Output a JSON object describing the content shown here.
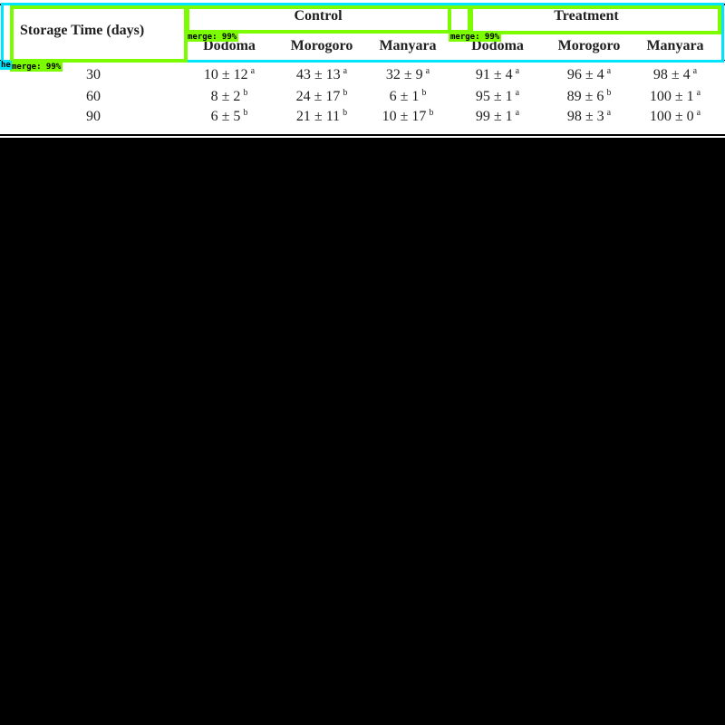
{
  "table": {
    "stub_header": "Storage Time (days)",
    "groups": [
      "Control",
      "Treatment"
    ],
    "columns": [
      "Dodoma",
      "Morogoro",
      "Manyara",
      "Dodoma",
      "Morogoro",
      "Manyara"
    ],
    "rows": [
      {
        "time": "30",
        "cells": [
          {
            "v": "10 ± 12",
            "s": "a"
          },
          {
            "v": "43 ± 13",
            "s": "a"
          },
          {
            "v": "32 ± 9",
            "s": "a"
          },
          {
            "v": "91 ± 4",
            "s": "a"
          },
          {
            "v": "96 ± 4",
            "s": "a"
          },
          {
            "v": "98 ± 4",
            "s": "a"
          }
        ]
      },
      {
        "time": "60",
        "cells": [
          {
            "v": "8 ± 2",
            "s": "b"
          },
          {
            "v": "24 ± 17",
            "s": "b"
          },
          {
            "v": "6 ± 1",
            "s": "b"
          },
          {
            "v": "95 ± 1",
            "s": "a"
          },
          {
            "v": "89 ± 6",
            "s": "b"
          },
          {
            "v": "100 ± 1",
            "s": "a"
          }
        ]
      },
      {
        "time": "90",
        "cells": [
          {
            "v": "6 ± 5",
            "s": "b"
          },
          {
            "v": "21 ± 11",
            "s": "b"
          },
          {
            "v": "10 ± 17",
            "s": "b"
          },
          {
            "v": "99 ± 1",
            "s": "a"
          },
          {
            "v": "98 ± 3",
            "s": "a"
          },
          {
            "v": "100 ± 0",
            "s": "a"
          }
        ]
      }
    ]
  },
  "overlay": {
    "labels": [
      "merge: 99%",
      "merge: 99%",
      "merge: 99%"
    ],
    "edge_label": "he",
    "colors": {
      "green": "#7cfc00",
      "cyan": "#00e5ff"
    }
  }
}
